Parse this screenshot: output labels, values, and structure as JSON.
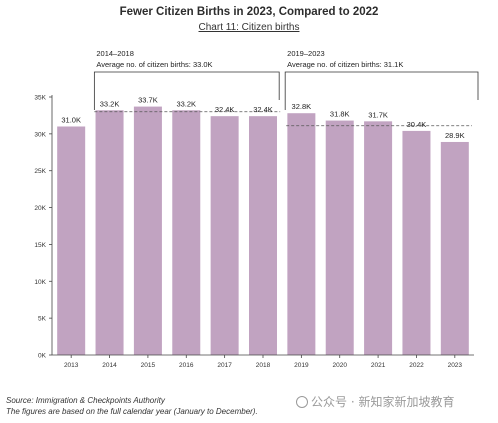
{
  "page": {
    "title": "Fewer Citizen Births in 2023, Compared to 2022",
    "subtitle": "Chart 11: Citizen births",
    "source": "Source: Immigration & Checkpoints Authority",
    "note": "The figures are based on the full calendar year (January to December).",
    "watermark": "公众号 · 新知家新加坡教育"
  },
  "chart_data": {
    "type": "bar",
    "categories": [
      "2013",
      "2014",
      "2015",
      "2016",
      "2017",
      "2018",
      "2019",
      "2020",
      "2021",
      "2022",
      "2023"
    ],
    "values": [
      31.0,
      33.2,
      33.7,
      33.2,
      32.4,
      32.4,
      32.8,
      31.8,
      31.7,
      30.4,
      28.9
    ],
    "data_labels": [
      "31.0K",
      "33.2K",
      "33.7K",
      "33.2K",
      "32.4K",
      "32.4K",
      "32.8K",
      "31.8K",
      "31.7K",
      "30.4K",
      "28.9K"
    ],
    "y_ticks": [
      0,
      5,
      10,
      15,
      20,
      25,
      30,
      35
    ],
    "y_tick_labels": [
      "0K",
      "5K",
      "10K",
      "15K",
      "20K",
      "25K",
      "30K",
      "35K"
    ],
    "ylim": [
      0,
      35
    ],
    "grid": false,
    "bar_color": "#c1a3c1",
    "annotations": [
      {
        "range_label": "2014–2018",
        "text": "Average no. of citizen births: 33.0K",
        "start": "2014",
        "end": "2018",
        "average": 33.0
      },
      {
        "range_label": "2019–2023",
        "text": "Average no. of citizen births: 31.1K",
        "start": "2019",
        "end": "2023",
        "average": 31.1
      }
    ]
  }
}
